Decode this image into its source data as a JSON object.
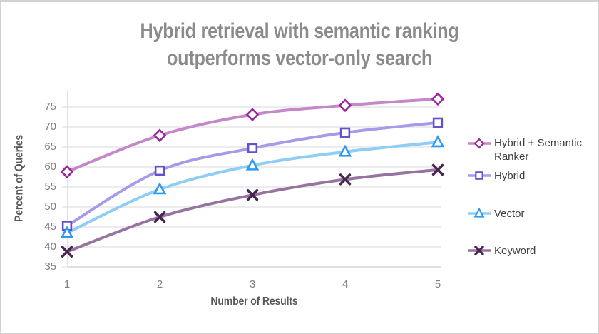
{
  "title": {
    "lines": [
      "Hybrid retrieval with semantic ranking",
      "outperforms vector-only search"
    ],
    "color": "#8b8b8b"
  },
  "chart_data": {
    "type": "line",
    "x": [
      1,
      2,
      3,
      4,
      5
    ],
    "xlabel": "Number of Results",
    "ylabel": "Percent of Queries",
    "ylim": [
      35,
      80
    ],
    "yticks": [
      35,
      40,
      45,
      50,
      55,
      60,
      65,
      70,
      75
    ],
    "grid": true,
    "legend_position": "right",
    "line_smoothing": true,
    "series": [
      {
        "name": "Hybrid + Semantic Ranker",
        "values": [
          58.8,
          67.9,
          73.1,
          75.4,
          77.0
        ],
        "line_color": "#c487ca",
        "marker": "diamond",
        "marker_color": "#99249c"
      },
      {
        "name": "Hybrid",
        "values": [
          45.3,
          59.1,
          64.7,
          68.6,
          71.1
        ],
        "line_color": "#a89ae9",
        "marker": "square",
        "marker_color": "#6750ce"
      },
      {
        "name": "Vector",
        "values": [
          43.5,
          54.4,
          60.4,
          63.8,
          66.2
        ],
        "line_color": "#8ecdf4",
        "marker": "triangle",
        "marker_color": "#2e9af0"
      },
      {
        "name": "Keyword",
        "values": [
          38.8,
          47.5,
          53.0,
          56.9,
          59.3
        ],
        "line_color": "#97739f",
        "marker": "x",
        "marker_color": "#46254e"
      }
    ],
    "colors": {
      "gridline": "#d9d9d9",
      "axis_line": "#d6d6d6",
      "tick_label": "#7f7f7f",
      "axis_title": "#595959",
      "legend_text": "#3f3f3f"
    }
  }
}
